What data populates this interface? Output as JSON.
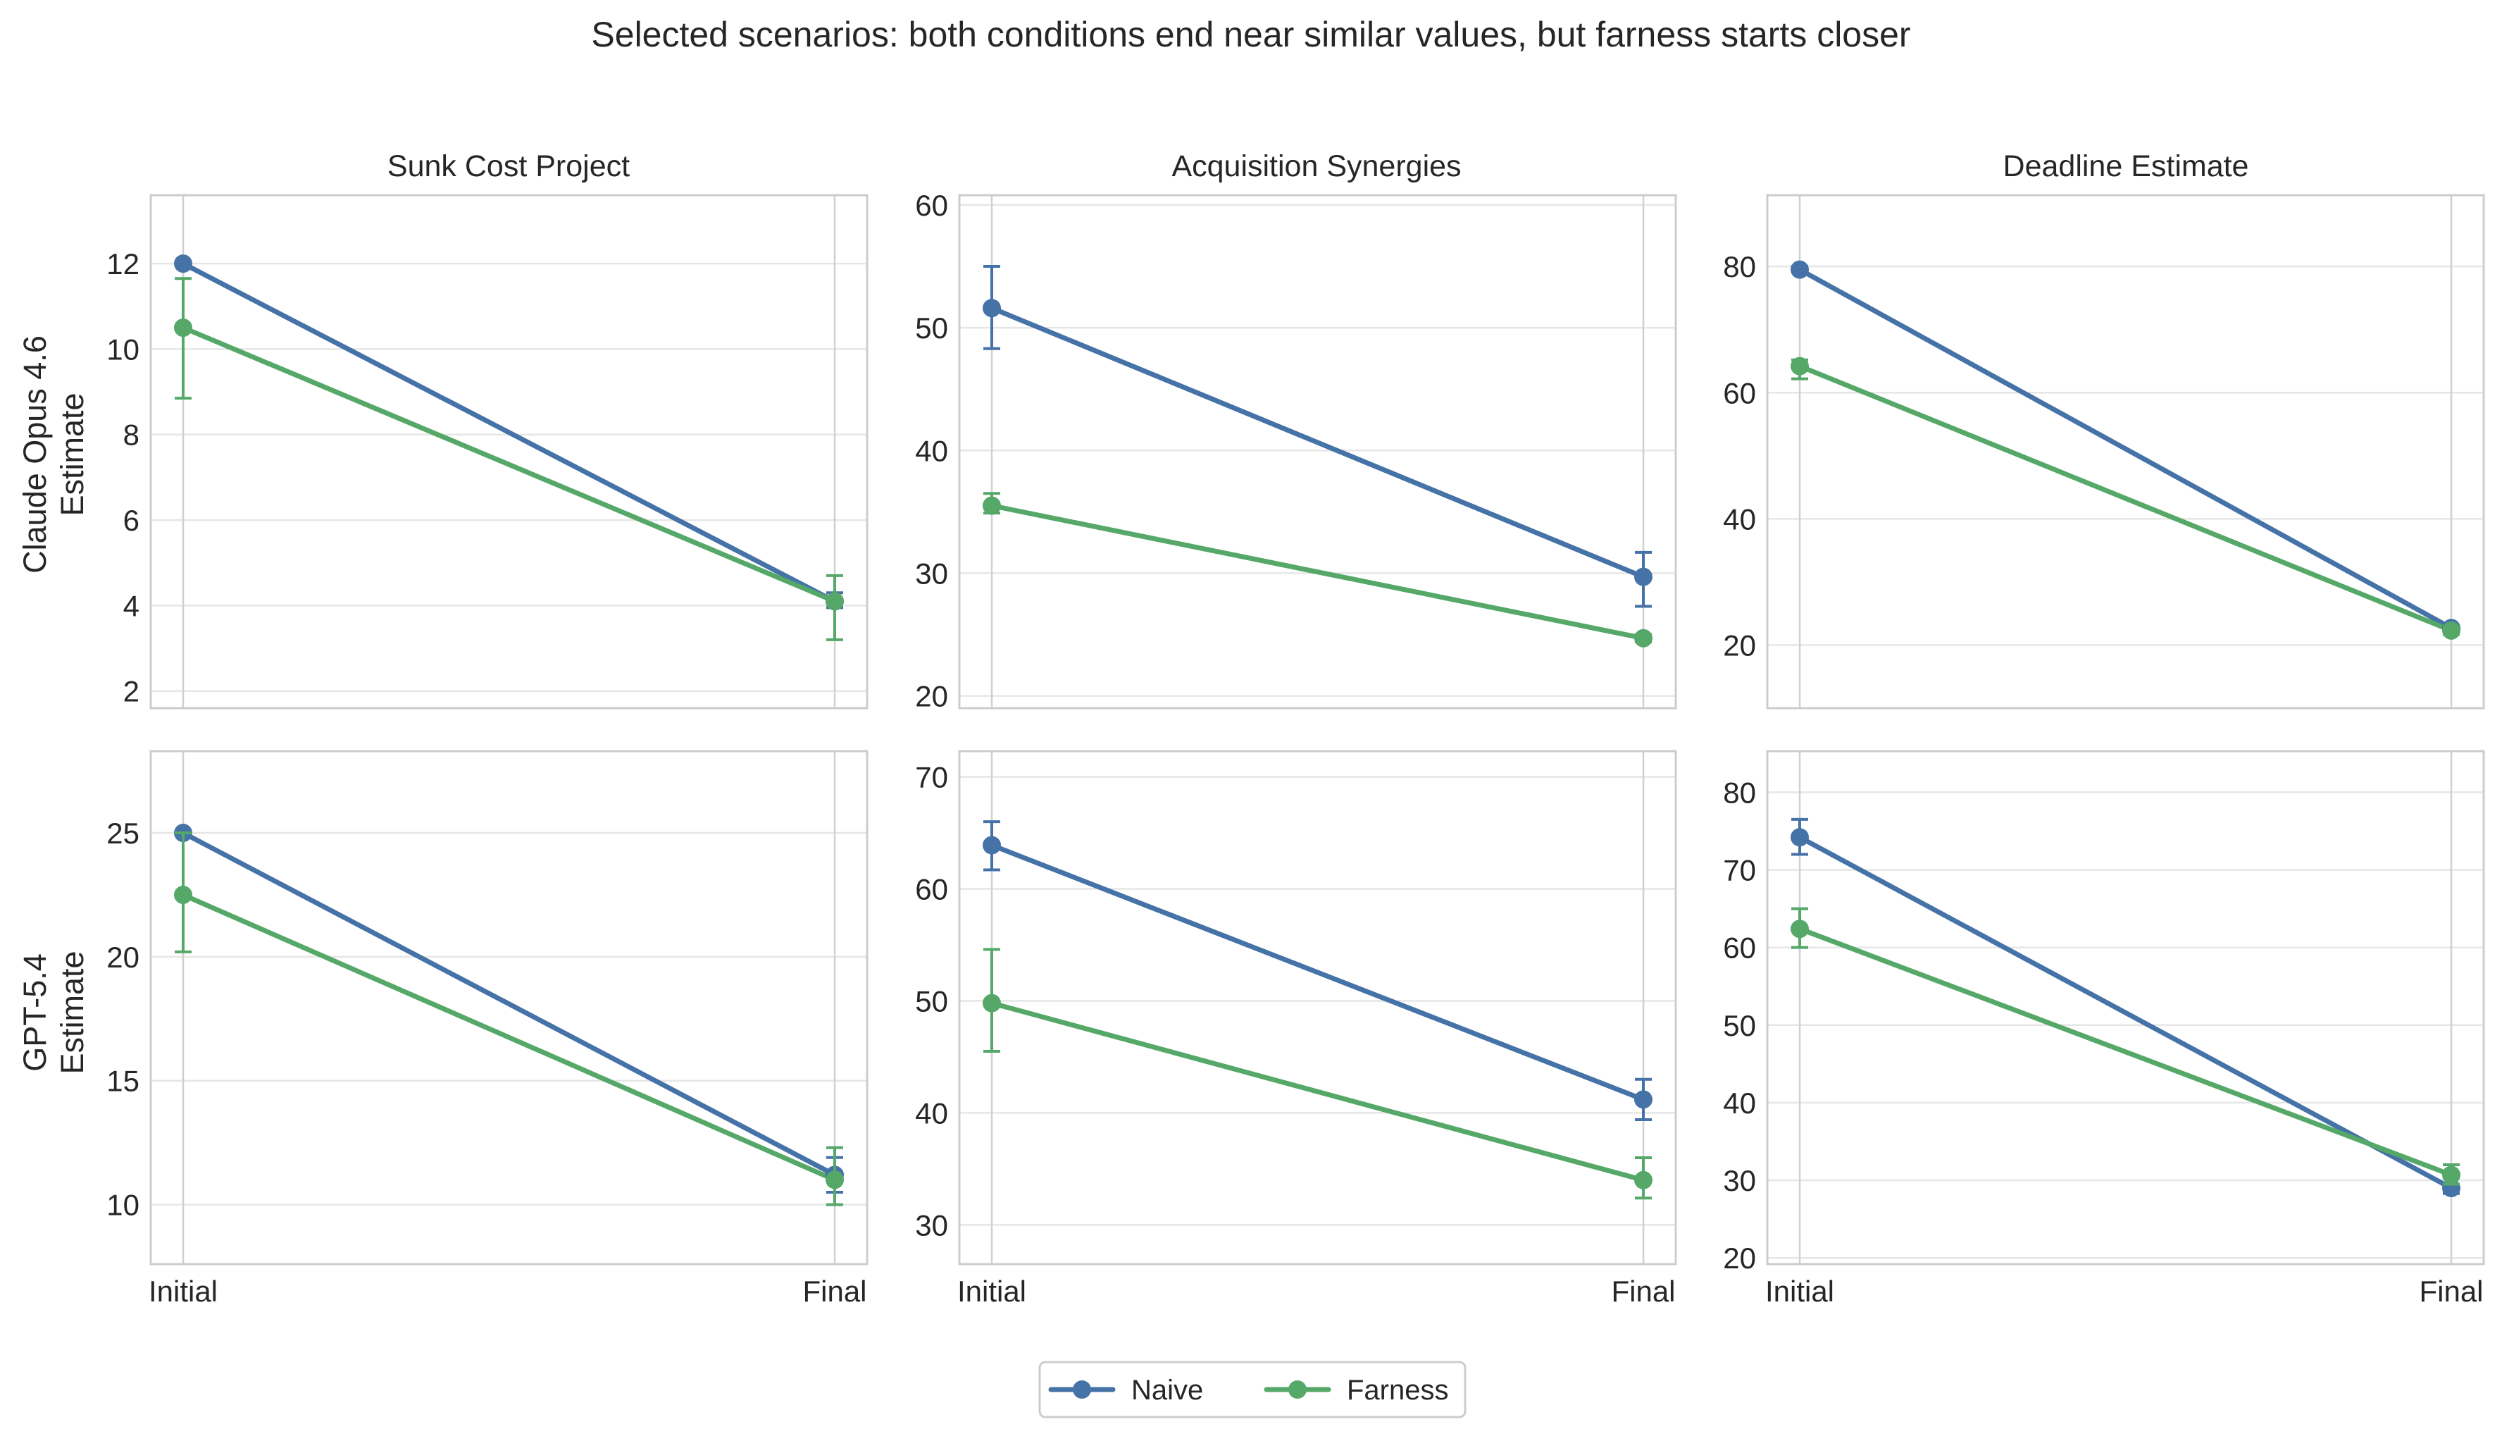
{
  "chart_data": {
    "type": "line",
    "title": "Selected scenarios: both conditions end near similar values, but farness starts closer",
    "categories": [
      "Initial",
      "Final"
    ],
    "columns": [
      "Sunk Cost Project",
      "Acquisition Synergies",
      "Deadline Estimate"
    ],
    "rows": [
      {
        "model": "Claude Opus 4.6",
        "ylabel": "Estimate"
      },
      {
        "model": "GPT-5.4",
        "ylabel": "Estimate"
      }
    ],
    "legend": {
      "placement": "bottom-center",
      "entries": [
        {
          "name": "Naive",
          "color": "#4572a7"
        },
        {
          "name": "Farness",
          "color": "#55a868"
        }
      ]
    },
    "panels": [
      {
        "row": 0,
        "col": 0,
        "title": "Sunk Cost Project",
        "xlabel": "",
        "ylim": [
          1.6,
          13.6
        ],
        "yticks": [
          2,
          4,
          6,
          8,
          10,
          12
        ],
        "series": [
          {
            "name": "Naive",
            "values": [
              12.0,
              4.1
            ],
            "error": [
              [
                12.0,
                12.0
              ],
              [
                3.95,
                4.3
              ]
            ]
          },
          {
            "name": "Farness",
            "values": [
              10.5,
              4.1
            ],
            "error": [
              [
                8.85,
                11.65
              ],
              [
                3.2,
                4.7
              ]
            ]
          }
        ]
      },
      {
        "row": 0,
        "col": 1,
        "title": "Acquisition Synergies",
        "xlabel": "",
        "ylim": [
          19.0,
          60.8
        ],
        "yticks": [
          20,
          30,
          40,
          50,
          60
        ],
        "series": [
          {
            "name": "Naive",
            "values": [
              51.6,
              29.7
            ],
            "error": [
              [
                48.3,
                55.0
              ],
              [
                27.3,
                31.7
              ]
            ]
          },
          {
            "name": "Farness",
            "values": [
              35.5,
              24.7
            ],
            "error": [
              [
                34.9,
                36.5
              ],
              [
                24.4,
                25.0
              ]
            ]
          }
        ]
      },
      {
        "row": 0,
        "col": 2,
        "title": "Deadline Estimate",
        "xlabel": "",
        "ylim": [
          10.0,
          91.3
        ],
        "yticks": [
          20,
          40,
          60,
          80
        ],
        "series": [
          {
            "name": "Naive",
            "values": [
              79.5,
              22.7
            ],
            "error": [
              [
                79.5,
                80.0
              ],
              [
                22.7,
                23.0
              ]
            ]
          },
          {
            "name": "Farness",
            "values": [
              64.2,
              22.3
            ],
            "error": [
              [
                62.2,
                65.2
              ],
              [
                21.7,
                23.0
              ]
            ]
          }
        ]
      },
      {
        "row": 1,
        "col": 0,
        "title": "",
        "xlabel": "",
        "ylim": [
          7.6,
          28.3
        ],
        "yticks": [
          10,
          15,
          20,
          25
        ],
        "series": [
          {
            "name": "Naive",
            "values": [
              25.0,
              11.2
            ],
            "error": [
              [
                25.0,
                25.0
              ],
              [
                10.5,
                11.9
              ]
            ]
          },
          {
            "name": "Farness",
            "values": [
              22.5,
              11.0
            ],
            "error": [
              [
                20.2,
                25.0
              ],
              [
                10.0,
                12.3
              ]
            ]
          }
        ]
      },
      {
        "row": 1,
        "col": 1,
        "title": "",
        "xlabel": "",
        "ylim": [
          26.5,
          72.3
        ],
        "yticks": [
          30,
          40,
          50,
          60,
          70
        ],
        "series": [
          {
            "name": "Naive",
            "values": [
              63.9,
              41.2
            ],
            "error": [
              [
                61.7,
                66.0
              ],
              [
                39.4,
                43.0
              ]
            ]
          },
          {
            "name": "Farness",
            "values": [
              49.8,
              34.0
            ],
            "error": [
              [
                45.5,
                54.6
              ],
              [
                32.4,
                36.0
              ]
            ]
          }
        ]
      },
      {
        "row": 1,
        "col": 2,
        "title": "",
        "xlabel": "",
        "ylim": [
          19.2,
          85.3
        ],
        "yticks": [
          20,
          30,
          40,
          50,
          60,
          70,
          80
        ],
        "series": [
          {
            "name": "Naive",
            "values": [
              74.2,
              29.0
            ],
            "error": [
              [
                72.0,
                76.5
              ],
              [
                28.3,
                29.5
              ]
            ]
          },
          {
            "name": "Farness",
            "values": [
              62.4,
              30.7
            ],
            "error": [
              [
                60.0,
                65.0
              ],
              [
                29.5,
                32.0
              ]
            ]
          }
        ]
      }
    ]
  }
}
